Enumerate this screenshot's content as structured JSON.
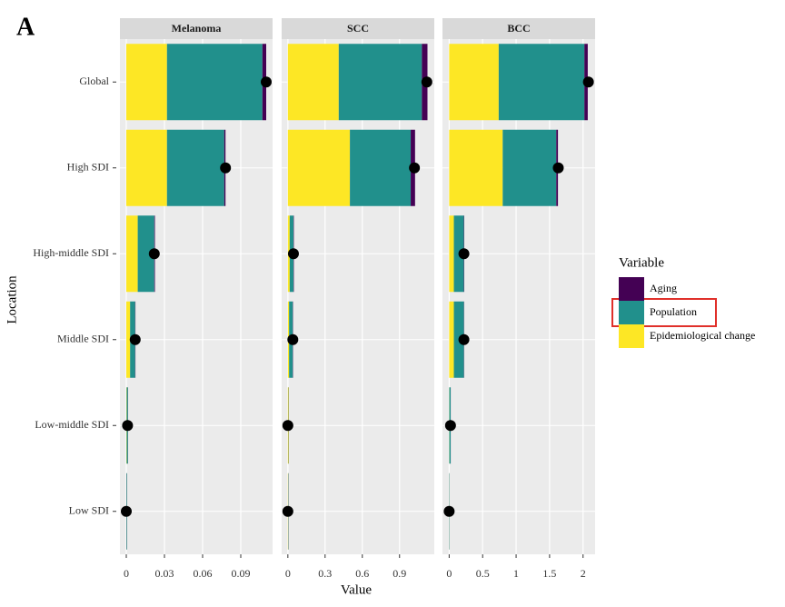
{
  "panel_label": "A",
  "chart_data": {
    "type": "bar",
    "stacked": true,
    "orientation": "horizontal",
    "x_label": "Value",
    "y_label": "Location",
    "legend_title": "Variable",
    "legend_position": "right",
    "grid": true,
    "categories": [
      "Global",
      "High SDI",
      "High-middle SDI",
      "Middle SDI",
      "Low-middle SDI",
      "Low SDI"
    ],
    "series": [
      {
        "name": "Aging",
        "color": "#440154"
      },
      {
        "name": "Population",
        "color": "#21908c"
      },
      {
        "name": "Epidemiological change",
        "color": "#fde725"
      }
    ],
    "point_color": "#000000",
    "facets": [
      {
        "title": "Melanoma",
        "xlim": [
          -0.005,
          0.115
        ],
        "xticks": [
          0,
          0.03,
          0.06,
          0.09
        ],
        "series_values": [
          [
            0.003,
            0.001,
            0.0005,
            0.0002,
            0.0001,
            0.0001
          ],
          [
            0.075,
            0.045,
            0.013,
            0.004,
            0.001,
            0.0005
          ],
          [
            0.032,
            0.032,
            0.009,
            0.003,
            0.0003,
            0.0001
          ]
        ],
        "net_values": [
          0.11,
          0.078,
          0.022,
          0.007,
          0.001,
          0.0
        ]
      },
      {
        "title": "SCC",
        "xlim": [
          -0.05,
          1.18
        ],
        "xticks": [
          0,
          0.3,
          0.6,
          0.9
        ],
        "series_values": [
          [
            0.045,
            0.035,
            0.003,
            0.002,
            0.001,
            0.001
          ],
          [
            0.67,
            0.49,
            0.03,
            0.03,
            0.002,
            0.002
          ],
          [
            0.41,
            0.5,
            0.015,
            0.01,
            0.005,
            0.003
          ]
        ],
        "net_values": [
          1.12,
          1.02,
          0.045,
          0.04,
          0.0,
          0.0
        ]
      },
      {
        "title": "BCC",
        "xlim": [
          -0.1,
          2.18
        ],
        "xticks": [
          0,
          0.5,
          1,
          1.5,
          2
        ],
        "series_values": [
          [
            0.05,
            0.025,
            0.005,
            0.003,
            0.001,
            0.001
          ],
          [
            1.28,
            0.8,
            0.15,
            0.15,
            0.02,
            0.005
          ],
          [
            0.74,
            0.8,
            0.07,
            0.07,
            0.002,
            0.001
          ]
        ],
        "net_values": [
          2.08,
          1.63,
          0.22,
          0.22,
          0.02,
          0.0
        ]
      }
    ]
  }
}
